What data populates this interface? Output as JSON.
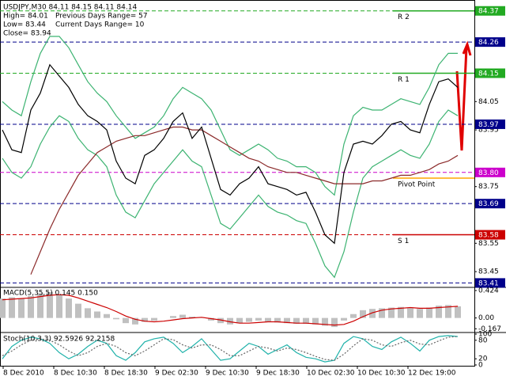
{
  "chart_data": [
    {
      "type": "line",
      "title": "USDJPY,M30  84.11 84.15 84.11 84.14",
      "info": [
        "High= 84.01",
        "Previous Days Range= 57",
        "Low= 83.44",
        "Current Days Range= 10",
        "Close= 83.94"
      ],
      "ylim": [
        83.4,
        84.4
      ],
      "yticks": [
        84.05,
        83.95,
        83.75,
        83.55,
        83.45
      ],
      "levels": [
        {
          "value": 84.37,
          "label": "84.37",
          "color": "#22aa22"
        },
        {
          "value": 84.26,
          "label": "84.26",
          "color": "#00008b"
        },
        {
          "value": 84.15,
          "label": "84.15",
          "color": "#22aa22"
        },
        {
          "value": 83.97,
          "label": "83.97",
          "color": "#00008b"
        },
        {
          "value": 83.8,
          "label": "83.80",
          "color": "#cc00cc"
        },
        {
          "value": 83.69,
          "label": "83.69",
          "color": "#00008b"
        },
        {
          "value": 83.58,
          "label": "83.58",
          "color": "#cc0000"
        },
        {
          "value": 83.41,
          "label": "83.41",
          "color": "#00008b"
        }
      ],
      "pivots": [
        {
          "name": "R 2",
          "value": 84.37,
          "color": "#22aa22"
        },
        {
          "name": "R 1",
          "value": 84.15,
          "color": "#22aa22"
        },
        {
          "name": "Pivot Point",
          "value": 83.78,
          "color": "#ffa500"
        },
        {
          "name": "S 1",
          "value": 83.58,
          "color": "#cc0000"
        }
      ],
      "series": [
        {
          "color": "#3cb371",
          "values": [
            84.05,
            84.02,
            84.0,
            84.12,
            84.22,
            84.28,
            84.28,
            84.24,
            84.18,
            84.12,
            84.08,
            84.05,
            84.0,
            83.96,
            83.92,
            83.94,
            83.96,
            84.0,
            84.06,
            84.1,
            84.08,
            84.06,
            84.02,
            83.95,
            83.88,
            83.86,
            83.88,
            83.9,
            83.88,
            83.85,
            83.84,
            83.82,
            83.82,
            83.8,
            83.75,
            83.72,
            83.9,
            84.0,
            84.03,
            84.02,
            84.02,
            84.04,
            84.06,
            84.05,
            84.04,
            84.1,
            84.18,
            84.22,
            84.22
          ]
        },
        {
          "color": "#3cb371",
          "values": [
            83.85,
            83.8,
            83.78,
            83.82,
            83.9,
            83.96,
            84.0,
            83.98,
            83.92,
            83.88,
            83.86,
            83.82,
            83.72,
            83.66,
            83.64,
            83.7,
            83.76,
            83.8,
            83.84,
            83.88,
            83.84,
            83.82,
            83.72,
            83.62,
            83.6,
            83.64,
            83.68,
            83.72,
            83.68,
            83.66,
            83.65,
            83.63,
            83.62,
            83.55,
            83.47,
            83.43,
            83.52,
            83.66,
            83.78,
            83.82,
            83.84,
            83.86,
            83.88,
            83.86,
            83.85,
            83.9,
            83.98,
            84.02,
            84.0
          ]
        },
        {
          "color": "#8b2a2a",
          "values": [
            null,
            null,
            null,
            83.44,
            83.52,
            83.6,
            83.67,
            83.73,
            83.79,
            83.83,
            83.87,
            83.89,
            83.91,
            83.92,
            83.93,
            83.93,
            83.94,
            83.95,
            83.96,
            83.96,
            83.95,
            83.95,
            83.93,
            83.91,
            83.89,
            83.87,
            83.85,
            83.84,
            83.82,
            83.81,
            83.8,
            83.8,
            83.79,
            83.78,
            83.77,
            83.76,
            83.76,
            83.76,
            83.76,
            83.77,
            83.77,
            83.78,
            83.79,
            83.79,
            83.8,
            83.81,
            83.83,
            83.84,
            83.86
          ]
        },
        {
          "color": "#000000",
          "values": [
            83.95,
            83.88,
            83.87,
            84.02,
            84.08,
            84.18,
            84.14,
            84.1,
            84.04,
            84.0,
            83.98,
            83.95,
            83.84,
            83.78,
            83.76,
            83.86,
            83.88,
            83.92,
            83.98,
            84.01,
            83.92,
            83.96,
            83.85,
            83.74,
            83.72,
            83.76,
            83.78,
            83.82,
            83.76,
            83.75,
            83.74,
            83.72,
            83.73,
            83.66,
            83.58,
            83.55,
            83.8,
            83.9,
            83.91,
            83.9,
            83.93,
            83.97,
            83.98,
            83.95,
            83.94,
            84.04,
            84.12,
            84.13,
            84.1
          ]
        }
      ],
      "x_labels": [
        "8 Dec 2010",
        "8 Dec 10:30",
        "8 Dec 18:30",
        "9 Dec 02:30",
        "9 Dec 10:30",
        "9 Dec 18:30",
        "10 Dec 02:30",
        "10 Dec 10:30",
        "12 Dec 19:00"
      ]
    },
    {
      "type": "bar",
      "title": "MACD(5,35,5) 0.145 0.150",
      "ylim": [
        -0.2,
        0.46
      ],
      "yticks": [
        0.424,
        {
          "value": 0,
          "label": "0.00"
        },
        -0.167
      ],
      "color": "#c0c0c0",
      "values": [
        0.3,
        0.32,
        0.3,
        0.34,
        0.38,
        0.4,
        0.36,
        0.3,
        0.22,
        0.15,
        0.1,
        0.06,
        -0.02,
        -0.08,
        -0.1,
        -0.06,
        -0.04,
        0.0,
        0.03,
        0.05,
        0.02,
        0.01,
        -0.04,
        -0.08,
        -0.1,
        -0.08,
        -0.06,
        -0.04,
        -0.06,
        -0.07,
        -0.08,
        -0.09,
        -0.09,
        -0.1,
        -0.12,
        -0.14,
        -0.04,
        0.06,
        0.12,
        0.14,
        0.15,
        0.16,
        0.17,
        0.15,
        0.14,
        0.16,
        0.19,
        0.2,
        0.18
      ],
      "series": [
        {
          "color": "#cc0000",
          "values": [
            0.28,
            0.29,
            0.3,
            0.31,
            0.33,
            0.35,
            0.36,
            0.35,
            0.31,
            0.26,
            0.21,
            0.16,
            0.1,
            0.03,
            -0.02,
            -0.05,
            -0.06,
            -0.05,
            -0.03,
            -0.01,
            0.0,
            0.01,
            -0.01,
            -0.03,
            -0.06,
            -0.08,
            -0.08,
            -0.07,
            -0.06,
            -0.06,
            -0.07,
            -0.08,
            -0.08,
            -0.09,
            -0.1,
            -0.11,
            -0.1,
            -0.05,
            0.02,
            0.08,
            0.12,
            0.14,
            0.15,
            0.16,
            0.15,
            0.15,
            0.16,
            0.17,
            0.18
          ]
        }
      ]
    },
    {
      "type": "line",
      "title": "Stoch(10,3,3) 92.5926 92.2158",
      "ylim": [
        0,
        100
      ],
      "yticks": [
        100,
        80,
        20,
        0
      ],
      "series": [
        {
          "color": "#20b2aa",
          "values": [
            20,
            60,
            80,
            90,
            85,
            70,
            40,
            20,
            35,
            60,
            80,
            70,
            30,
            15,
            40,
            75,
            85,
            90,
            70,
            40,
            60,
            85,
            50,
            15,
            20,
            45,
            70,
            60,
            35,
            50,
            65,
            40,
            25,
            20,
            10,
            15,
            70,
            92,
            85,
            60,
            50,
            75,
            90,
            70,
            45,
            80,
            92,
            95,
            92
          ]
        },
        {
          "color": "#666666",
          "dashed": true,
          "values": [
            30,
            45,
            65,
            80,
            85,
            80,
            65,
            45,
            30,
            40,
            60,
            70,
            60,
            40,
            30,
            45,
            65,
            85,
            82,
            65,
            55,
            65,
            65,
            50,
            30,
            30,
            45,
            60,
            55,
            45,
            55,
            50,
            40,
            28,
            18,
            15,
            35,
            62,
            85,
            80,
            65,
            60,
            72,
            80,
            68,
            65,
            78,
            90,
            92
          ]
        }
      ]
    }
  ]
}
